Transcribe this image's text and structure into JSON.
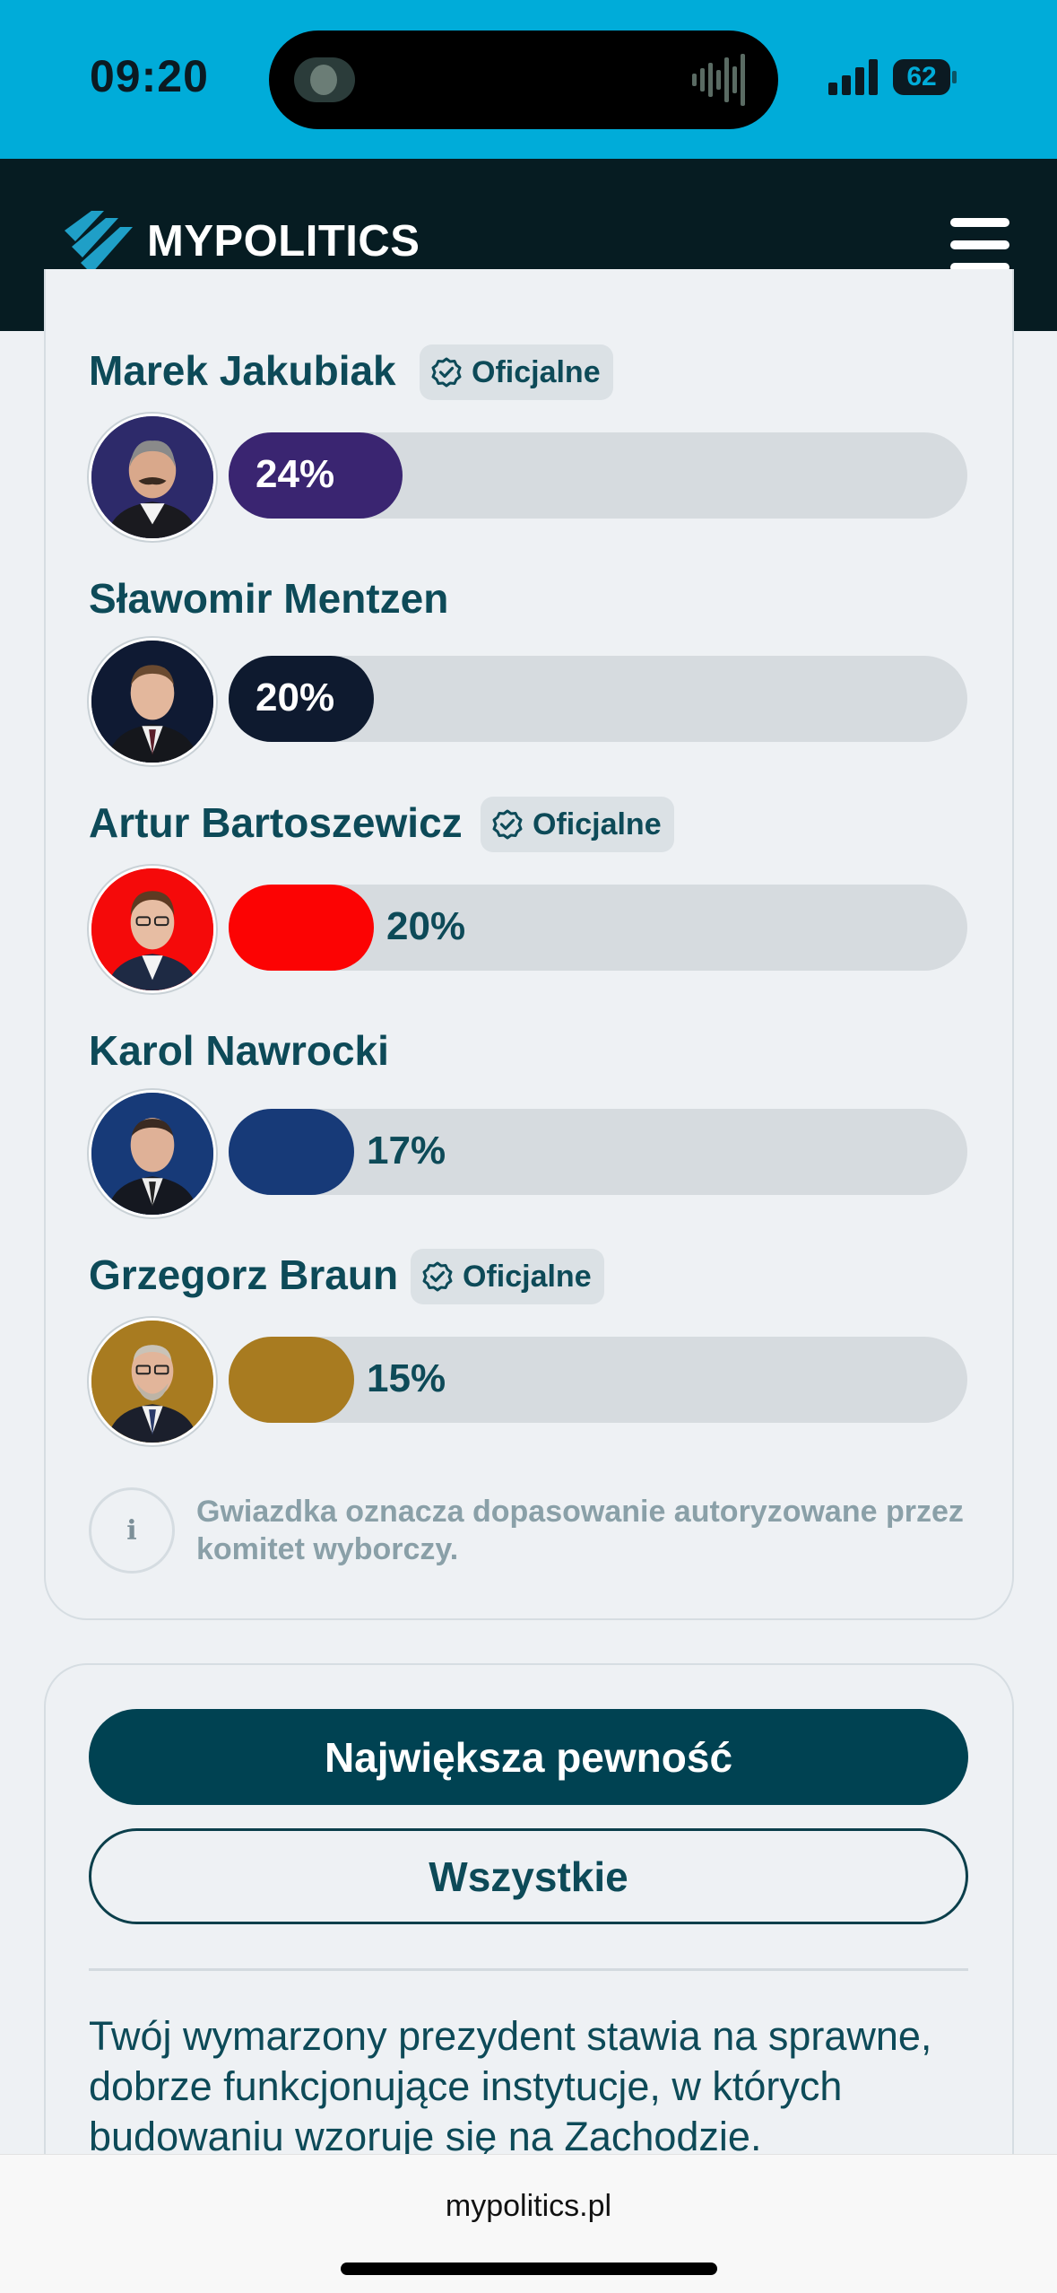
{
  "status_bar": {
    "time": "09:20",
    "battery": "62"
  },
  "header": {
    "logo_text": "MYPOLITICS"
  },
  "candidates": [
    {
      "name": "Marek Jakubiak",
      "official": true,
      "percent": "24%",
      "value": 24,
      "color": "#3a2571"
    },
    {
      "name": "Sławomir Mentzen",
      "official": false,
      "percent": "20%",
      "value": 20,
      "color": "#0e1a2f"
    },
    {
      "name": "Artur Bartoszewicz",
      "official": true,
      "percent": "20%",
      "value": 20,
      "color": "#fc0303"
    },
    {
      "name": "Karol Nawrocki",
      "official": false,
      "percent": "17%",
      "value": 17,
      "color": "#173a78"
    },
    {
      "name": "Grzegorz Braun",
      "official": true,
      "percent": "15%",
      "value": 15,
      "color": "#a87b20"
    }
  ],
  "badge_label": "Oficjalne",
  "info_note": "Gwiazdka oznacza dopasowanie autoryzowane przez komitet wyborczy.",
  "filters": {
    "primary": "Największa pewność",
    "secondary": "Wszystkie"
  },
  "description": "Twój wymarzony prezydent stawia na sprawne, dobrze funkcjonujące instytucje, w których budowaniu wzoruje się na Zachodzie.",
  "browser": {
    "url": "mypolitics.pl"
  }
}
